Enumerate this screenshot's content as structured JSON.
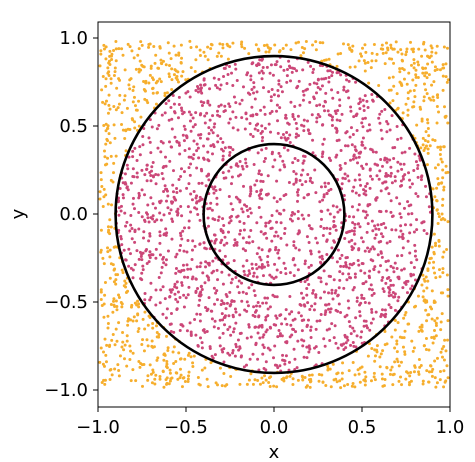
{
  "chart_data": {
    "type": "scatter",
    "title": "",
    "xlabel": "x",
    "ylabel": "y",
    "xlim": [
      -1.0,
      1.0
    ],
    "ylim": [
      -1.1,
      1.1
    ],
    "aspect": "equal",
    "grid": false,
    "legend": "none",
    "x_ticks": [
      -1.0,
      -0.5,
      0.0,
      0.5,
      1.0
    ],
    "x_tick_labels": [
      "−1.0",
      "−0.5",
      "0.0",
      "0.5",
      "1.0"
    ],
    "y_ticks": [
      1.0,
      0.5,
      0.0,
      -0.5,
      -1.0
    ],
    "y_tick_labels": [
      "1.0",
      "0.5",
      "0.0",
      "−0.5",
      "−1.0"
    ],
    "sampling": {
      "distribution": "uniform",
      "x_range": [
        -0.99,
        0.99
      ],
      "y_range": [
        -0.99,
        0.99
      ],
      "n_points": 3000
    },
    "circles": [
      {
        "center": [
          0,
          0
        ],
        "radius": 0.4,
        "color": "#000000"
      },
      {
        "center": [
          0,
          0
        ],
        "radius": 0.9,
        "color": "#000000"
      }
    ],
    "series": [
      {
        "rule": "radius <= 0.9",
        "color": "#cc4778"
      },
      {
        "rule": "radius > 0.9",
        "color": "#f6ae2d"
      }
    ]
  }
}
